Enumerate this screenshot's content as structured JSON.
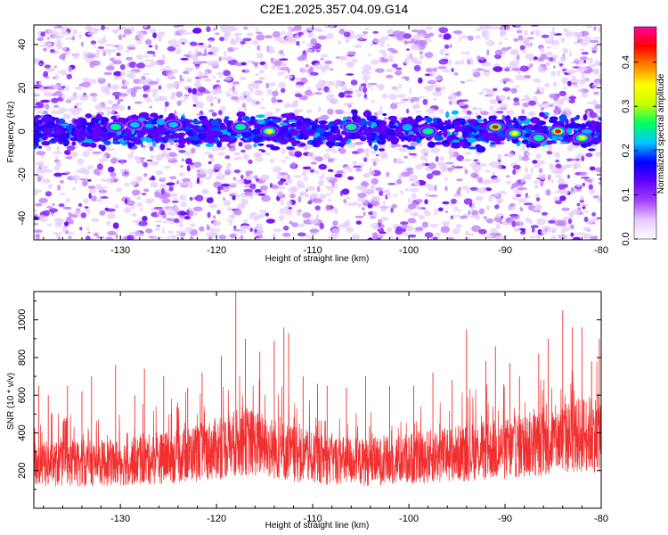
{
  "title": "C2E1.2025.357.04.09.G14",
  "chart_data": [
    {
      "type": "heatmap",
      "xlabel": "Height of straight line (km)",
      "ylabel": "Frequency (Hz)",
      "xlim": [
        -139,
        -80
      ],
      "ylim": [
        -50,
        49
      ],
      "xticks": [
        -130,
        -120,
        -110,
        -100,
        -90,
        -80
      ],
      "yticks": [
        -40,
        -20,
        0,
        20,
        40
      ],
      "colorbar": {
        "label": "Normalized spectral amplitude",
        "range": [
          0,
          0.48
        ],
        "ticks": [
          0.0,
          0.1,
          0.2,
          0.3,
          0.4
        ],
        "colors": [
          "#ffffff",
          "#e8c8ff",
          "#a040ff",
          "#6000ff",
          "#0000ff",
          "#00c8ff",
          "#00ff60",
          "#c8ff00",
          "#ffff00",
          "#ff8000",
          "#ff0000",
          "#ff00a0"
        ]
      },
      "band_center_hz": 0,
      "band_halfwidth_hz": 5,
      "hotspots": [
        {
          "x": -130.5,
          "y": 2,
          "v": 0.26
        },
        {
          "x": -128.5,
          "y": 3,
          "v": 0.22
        },
        {
          "x": -124.5,
          "y": 3,
          "v": 0.24
        },
        {
          "x": -117.5,
          "y": 2,
          "v": 0.3
        },
        {
          "x": -114.5,
          "y": 0,
          "v": 0.36
        },
        {
          "x": -106,
          "y": 2,
          "v": 0.25
        },
        {
          "x": -98,
          "y": 0,
          "v": 0.3
        },
        {
          "x": -91,
          "y": 2,
          "v": 0.45
        },
        {
          "x": -89,
          "y": -1,
          "v": 0.34
        },
        {
          "x": -86.5,
          "y": -3,
          "v": 0.3
        },
        {
          "x": -84.5,
          "y": 0,
          "v": 0.42
        },
        {
          "x": -82,
          "y": -3,
          "v": 0.33
        }
      ]
    },
    {
      "type": "line",
      "xlabel": "Height of straight line (km)",
      "ylabel": "SNR (10 * v/v)",
      "xlim": [
        -139,
        -80
      ],
      "ylim": [
        0,
        1150
      ],
      "xticks": [
        -130,
        -120,
        -110,
        -100,
        -90,
        -80
      ],
      "yticks": [
        200,
        400,
        600,
        800,
        1000
      ],
      "color": "#f03030",
      "baseline": [
        {
          "x": -139,
          "y": 220
        },
        {
          "x": -130,
          "y": 230
        },
        {
          "x": -124,
          "y": 260
        },
        {
          "x": -120,
          "y": 300
        },
        {
          "x": -117,
          "y": 340
        },
        {
          "x": -114,
          "y": 300
        },
        {
          "x": -110,
          "y": 250
        },
        {
          "x": -104,
          "y": 230
        },
        {
          "x": -98,
          "y": 260
        },
        {
          "x": -94,
          "y": 280
        },
        {
          "x": -90,
          "y": 300
        },
        {
          "x": -86,
          "y": 330
        },
        {
          "x": -82,
          "y": 370
        },
        {
          "x": -80,
          "y": 380
        }
      ],
      "peaks": [
        {
          "x": -138.5,
          "y": 650
        },
        {
          "x": -137.5,
          "y": 600
        },
        {
          "x": -135.5,
          "y": 650
        },
        {
          "x": -134,
          "y": 620
        },
        {
          "x": -133,
          "y": 700
        },
        {
          "x": -130.5,
          "y": 760
        },
        {
          "x": -128.5,
          "y": 600
        },
        {
          "x": -127.5,
          "y": 740
        },
        {
          "x": -125.5,
          "y": 700
        },
        {
          "x": -123,
          "y": 640
        },
        {
          "x": -121.5,
          "y": 720
        },
        {
          "x": -119.5,
          "y": 810
        },
        {
          "x": -118,
          "y": 1150
        },
        {
          "x": -117,
          "y": 900
        },
        {
          "x": -115.5,
          "y": 830
        },
        {
          "x": -114,
          "y": 890
        },
        {
          "x": -113,
          "y": 960
        },
        {
          "x": -112.5,
          "y": 930
        },
        {
          "x": -111,
          "y": 700
        },
        {
          "x": -109.5,
          "y": 660
        },
        {
          "x": -108.5,
          "y": 650
        },
        {
          "x": -106.5,
          "y": 640
        },
        {
          "x": -104.5,
          "y": 700
        },
        {
          "x": -102,
          "y": 650
        },
        {
          "x": -99.5,
          "y": 650
        },
        {
          "x": -97.5,
          "y": 720
        },
        {
          "x": -95.5,
          "y": 680
        },
        {
          "x": -94,
          "y": 950
        },
        {
          "x": -92,
          "y": 780
        },
        {
          "x": -91,
          "y": 860
        },
        {
          "x": -89.5,
          "y": 770
        },
        {
          "x": -88.5,
          "y": 700
        },
        {
          "x": -86.5,
          "y": 820
        },
        {
          "x": -85.5,
          "y": 900
        },
        {
          "x": -84,
          "y": 1050
        },
        {
          "x": -83,
          "y": 960
        },
        {
          "x": -82,
          "y": 960
        },
        {
          "x": -81,
          "y": 780
        },
        {
          "x": -80.2,
          "y": 900
        }
      ]
    }
  ]
}
